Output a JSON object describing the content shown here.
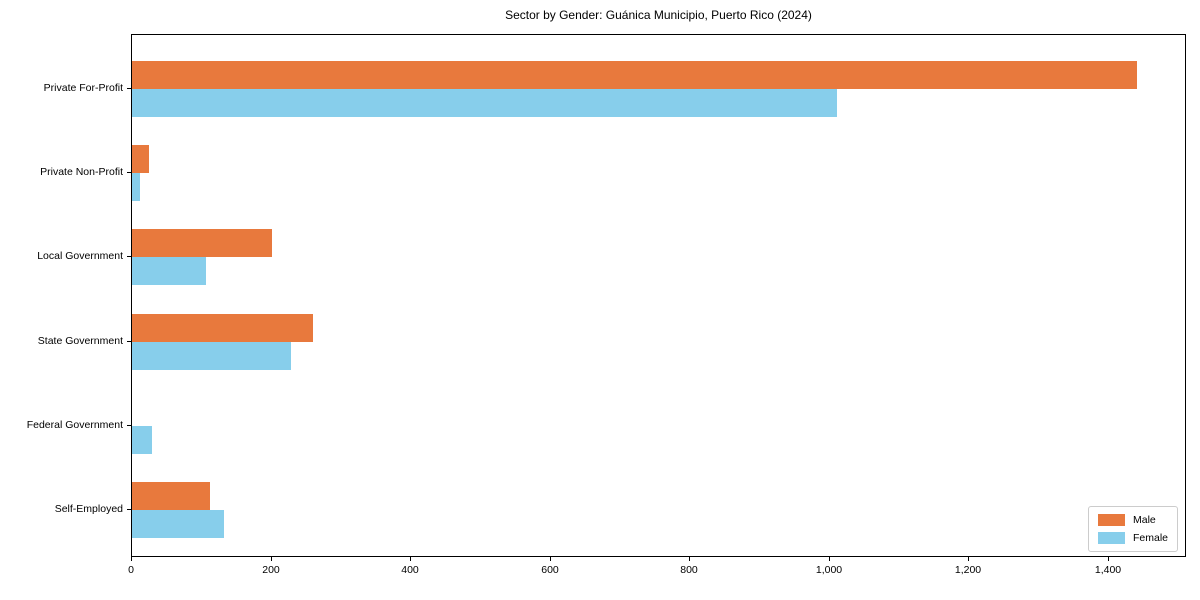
{
  "chart_data": {
    "type": "bar",
    "orientation": "horizontal",
    "title": "Sector by Gender: Guánica Municipio, Puerto Rico (2024)",
    "categories": [
      "Private For-Profit",
      "Private Non-Profit",
      "Local Government",
      "State Government",
      "Federal Government",
      "Self-Employed"
    ],
    "series": [
      {
        "name": "Male",
        "color": "#e8793d",
        "values": [
          1440,
          24,
          200,
          260,
          0,
          112
        ]
      },
      {
        "name": "Female",
        "color": "#87ceeb",
        "values": [
          1010,
          11,
          106,
          228,
          29,
          132
        ]
      }
    ],
    "xlabel": "",
    "ylabel": "",
    "xlim": [
      0,
      1512
    ],
    "xticks": [
      0,
      200,
      400,
      600,
      800,
      1000,
      1200,
      1400
    ],
    "xtick_labels": [
      "0",
      "200",
      "400",
      "600",
      "800",
      "1,000",
      "1,200",
      "1,400"
    ],
    "legend_position": "lower right",
    "grid": false
  }
}
